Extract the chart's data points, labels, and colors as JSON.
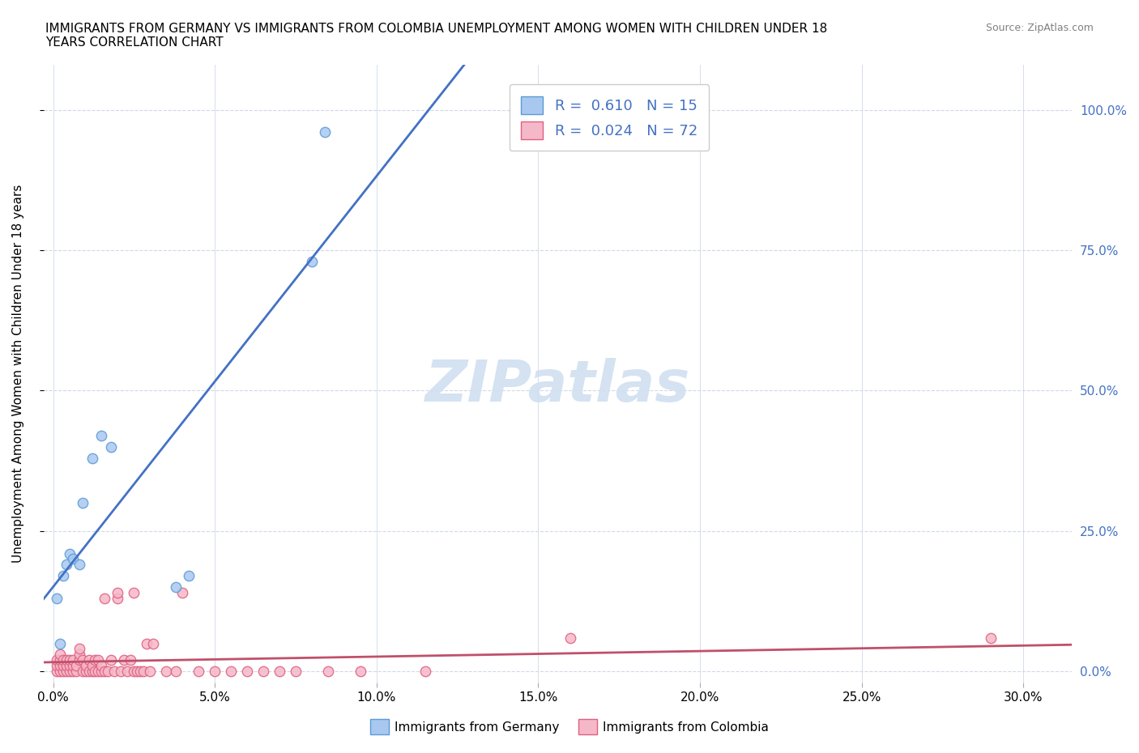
{
  "title": "IMMIGRANTS FROM GERMANY VS IMMIGRANTS FROM COLOMBIA UNEMPLOYMENT AMONG WOMEN WITH CHILDREN UNDER 18\nYEARS CORRELATION CHART",
  "source": "Source: ZipAtlas.com",
  "xlabel_ticks": [
    "0.0%",
    "5.0%",
    "10.0%",
    "15.0%",
    "20.0%",
    "25.0%",
    "30.0%"
  ],
  "xlabel_vals": [
    0.0,
    0.05,
    0.1,
    0.15,
    0.2,
    0.25,
    0.3
  ],
  "ylabel_ticks": [
    "0.0%",
    "25.0%",
    "50.0%",
    "75.0%",
    "100.0%"
  ],
  "ylabel_vals": [
    0.0,
    0.25,
    0.5,
    0.75,
    1.0
  ],
  "xlim": [
    -0.003,
    0.315
  ],
  "ylim": [
    -0.02,
    1.08
  ],
  "germany_x": [
    0.001,
    0.002,
    0.003,
    0.004,
    0.005,
    0.006,
    0.008,
    0.009,
    0.012,
    0.015,
    0.018,
    0.038,
    0.042,
    0.08,
    0.084
  ],
  "germany_y": [
    0.13,
    0.05,
    0.17,
    0.19,
    0.21,
    0.2,
    0.19,
    0.3,
    0.38,
    0.42,
    0.4,
    0.15,
    0.17,
    0.73,
    0.96
  ],
  "colombia_x": [
    0.001,
    0.001,
    0.001,
    0.002,
    0.002,
    0.002,
    0.002,
    0.003,
    0.003,
    0.003,
    0.004,
    0.004,
    0.004,
    0.005,
    0.005,
    0.005,
    0.006,
    0.006,
    0.006,
    0.007,
    0.007,
    0.008,
    0.008,
    0.008,
    0.009,
    0.009,
    0.01,
    0.01,
    0.011,
    0.011,
    0.012,
    0.012,
    0.013,
    0.013,
    0.014,
    0.014,
    0.015,
    0.015,
    0.016,
    0.016,
    0.017,
    0.018,
    0.019,
    0.02,
    0.02,
    0.021,
    0.022,
    0.023,
    0.024,
    0.025,
    0.025,
    0.026,
    0.027,
    0.028,
    0.029,
    0.03,
    0.031,
    0.035,
    0.038,
    0.04,
    0.045,
    0.05,
    0.055,
    0.06,
    0.065,
    0.07,
    0.075,
    0.085,
    0.095,
    0.115,
    0.16,
    0.29
  ],
  "colombia_y": [
    0.0,
    0.01,
    0.02,
    0.0,
    0.01,
    0.02,
    0.03,
    0.0,
    0.01,
    0.02,
    0.0,
    0.01,
    0.02,
    0.0,
    0.01,
    0.02,
    0.0,
    0.01,
    0.02,
    0.0,
    0.01,
    0.02,
    0.03,
    0.04,
    0.0,
    0.02,
    0.0,
    0.01,
    0.0,
    0.02,
    0.0,
    0.01,
    0.0,
    0.02,
    0.0,
    0.02,
    0.0,
    0.01,
    0.0,
    0.13,
    0.0,
    0.02,
    0.0,
    0.13,
    0.14,
    0.0,
    0.02,
    0.0,
    0.02,
    0.0,
    0.14,
    0.0,
    0.0,
    0.0,
    0.05,
    0.0,
    0.05,
    0.0,
    0.0,
    0.14,
    0.0,
    0.0,
    0.0,
    0.0,
    0.0,
    0.0,
    0.0,
    0.0,
    0.0,
    0.0,
    0.06,
    0.06
  ],
  "germany_color": "#a8c8f0",
  "germany_edge_color": "#5b9bd5",
  "colombia_color": "#f5b8c8",
  "colombia_edge_color": "#e06080",
  "germany_line_color": "#4472c4",
  "colombia_line_color": "#c0506a",
  "trendline_extend_color": "#b0c8e8",
  "germany_R": 0.61,
  "germany_N": 15,
  "colombia_R": 0.024,
  "colombia_N": 72,
  "legend_R_color": "#4472c4",
  "watermark": "ZIPatlas",
  "watermark_color": "#d0dff0",
  "grid_color": "#d0d8e8",
  "right_axis_color": "#4472c4",
  "marker_size": 80
}
